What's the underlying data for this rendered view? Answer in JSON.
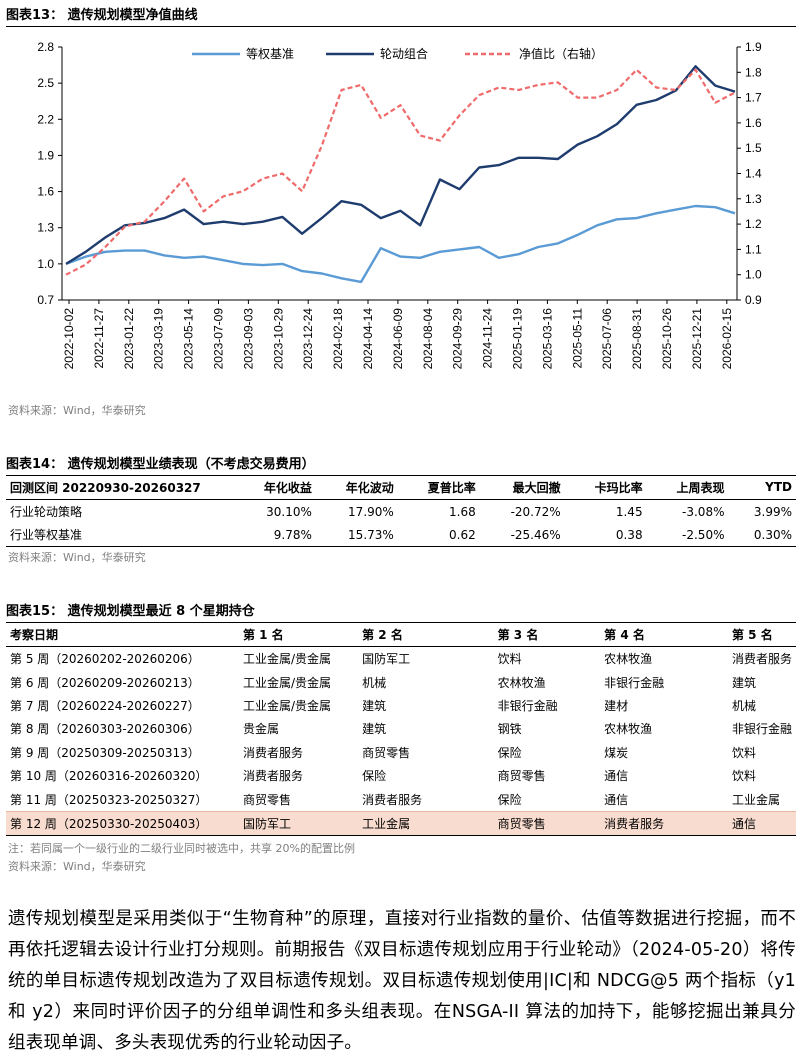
{
  "fig13": {
    "title": "图表13：  遗传规划模型净值曲线",
    "source": "资料来源：Wind，华泰研究"
  },
  "chart_data": {
    "type": "line",
    "title": "遗传规划模型净值曲线",
    "legend": [
      "等权基准",
      "轮动组合",
      "净值比（右轴）"
    ],
    "legend_position": "top",
    "left_axis": {
      "range": [
        0.7,
        2.8
      ],
      "ticks": [
        "2.8",
        "2.5",
        "2.2",
        "1.9",
        "1.6",
        "1.3",
        "1.0",
        "0.7"
      ]
    },
    "right_axis": {
      "range": [
        0.9,
        1.9
      ],
      "ticks": [
        "1.9",
        "1.8",
        "1.7",
        "1.6",
        "1.5",
        "1.4",
        "1.3",
        "1.2",
        "1.1",
        "1.0",
        "0.9"
      ]
    },
    "x_ticks": [
      "2022-10-02",
      "2022-11-27",
      "2023-01-22",
      "2023-03-19",
      "2023-05-14",
      "2023-07-09",
      "2023-09-03",
      "2023-10-29",
      "2023-12-24",
      "2024-02-18",
      "2024-04-14",
      "2024-06-09",
      "2024-08-04",
      "2024-09-29",
      "2024-11-24",
      "2025-01-19",
      "2025-03-16",
      "2025-05-11",
      "2025-07-06",
      "2025-08-31",
      "2025-10-26",
      "2025-12-21",
      "2026-02-15"
    ],
    "series": [
      {
        "name": "等权基准",
        "axis": "left",
        "color": "#5b9bd5",
        "values": [
          1.0,
          1.06,
          1.1,
          1.11,
          1.11,
          1.07,
          1.05,
          1.06,
          1.03,
          1.0,
          0.99,
          1.0,
          0.94,
          0.92,
          0.88,
          0.85,
          1.13,
          1.06,
          1.05,
          1.1,
          1.12,
          1.14,
          1.05,
          1.08,
          1.14,
          1.17,
          1.24,
          1.32,
          1.37,
          1.38,
          1.42,
          1.45,
          1.48,
          1.47,
          1.42
        ]
      },
      {
        "name": "轮动组合",
        "axis": "left",
        "color": "#1f3c6e",
        "values": [
          1.0,
          1.1,
          1.22,
          1.32,
          1.34,
          1.38,
          1.45,
          1.33,
          1.35,
          1.33,
          1.35,
          1.39,
          1.25,
          1.38,
          1.52,
          1.49,
          1.38,
          1.44,
          1.32,
          1.7,
          1.62,
          1.8,
          1.82,
          1.88,
          1.88,
          1.87,
          1.99,
          2.06,
          2.16,
          2.32,
          2.36,
          2.44,
          2.64,
          2.48,
          2.43
        ]
      },
      {
        "name": "净值比（右轴）",
        "axis": "right",
        "color": "#ef6a6a",
        "dashed": true,
        "values": [
          1.0,
          1.04,
          1.11,
          1.19,
          1.21,
          1.29,
          1.38,
          1.25,
          1.31,
          1.33,
          1.38,
          1.4,
          1.33,
          1.51,
          1.73,
          1.75,
          1.62,
          1.67,
          1.55,
          1.53,
          1.63,
          1.71,
          1.74,
          1.73,
          1.75,
          1.76,
          1.7,
          1.7,
          1.73,
          1.81,
          1.74,
          1.73,
          1.81,
          1.68,
          1.72
        ]
      }
    ]
  },
  "fig14": {
    "title": "图表14：  遗传规划模型业绩表现（不考虑交易费用）",
    "headers": [
      "回测区间 20220930-20260327",
      "年化收益",
      "年化波动",
      "夏普比率",
      "最大回撤",
      "卡玛比率",
      "上周表现",
      "YTD"
    ],
    "rows": [
      [
        "行业轮动策略",
        "30.10%",
        "17.90%",
        "1.68",
        "-20.72%",
        "1.45",
        "-3.08%",
        "3.99%"
      ],
      [
        "行业等权基准",
        "9.78%",
        "15.73%",
        "0.62",
        "-25.46%",
        "0.38",
        "-2.50%",
        "0.30%"
      ]
    ],
    "source": "资料来源：Wind，华泰研究"
  },
  "fig15": {
    "title": "图表15：  遗传规划模型最近 8 个星期持仓",
    "headers": [
      "考察日期",
      "第 1 名",
      "第 2 名",
      "第 3 名",
      "第 4 名",
      "第 5 名"
    ],
    "rows": [
      [
        "第 5 周（20260202-20260206）",
        "工业金属/贵金属",
        "国防军工",
        "饮料",
        "农林牧渔",
        "消费者服务"
      ],
      [
        "第 6 周（20260209-20260213）",
        "工业金属/贵金属",
        "机械",
        "农林牧渔",
        "非银行金融",
        "建筑"
      ],
      [
        "第 7 周（20260224-20260227）",
        "工业金属/贵金属",
        "建筑",
        "非银行金融",
        "建材",
        "机械"
      ],
      [
        "第 8 周（20260303-20260306）",
        "贵金属",
        "建筑",
        "钢铁",
        "农林牧渔",
        "非银行金融"
      ],
      [
        "第 9 周（20250309-20250313）",
        "消费者服务",
        "商贸零售",
        "保险",
        "煤炭",
        "饮料"
      ],
      [
        "第 10 周（20260316-20260320）",
        "消费者服务",
        "保险",
        "商贸零售",
        "通信",
        "饮料"
      ],
      [
        "第 11 周（20250323-20250327）",
        "商贸零售",
        "消费者服务",
        "保险",
        "通信",
        "工业金属"
      ],
      [
        "第 12 周（20250330-20250403）",
        "国防军工",
        "工业金属",
        "商贸零售",
        "消费者服务",
        "通信"
      ]
    ],
    "note": "注：若同属一个一级行业的二级行业同时被选中，共享 20%的配置比例",
    "source": "资料来源：Wind，华泰研究",
    "highlight_color": "#f8dccf"
  },
  "body_text": [
    "遗传规划模型是采用类似于“生物育种”的原理，直接对行业指数的量价、估值等数据进行挖掘，而不再依托逻辑去设计行业打分规则。前期报告《双目标遗传规划应用于行业轮动》（2024-05-20）将传统的单目标遗传规划改造为了双目标遗传规划。双目标遗传规划使用|IC|和 NDCG@5 两个指标（y1 和 y2）来同时评价因子的分组单调性和多头组表现。在NSGA-II 算法的加持下，能够挖掘出兼具分组表现单调、多头表现优秀的行业轮动因子。"
  ]
}
